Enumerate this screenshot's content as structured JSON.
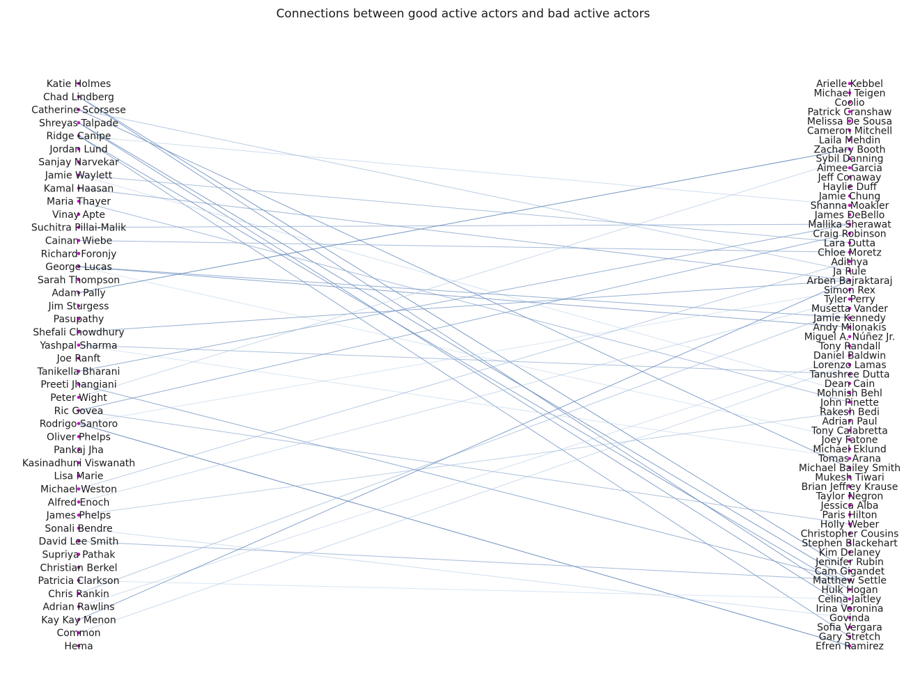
{
  "title": "Connections between good active actors and bad active actors",
  "colors": {
    "node": "#bf1bbf",
    "edge_light": "#c6dbef",
    "edge_dark": "#3b65a6",
    "text": "#1a1a1a",
    "background": "#ffffff"
  },
  "graph": {
    "left_nodes": [
      "Katie Holmes",
      "Chad Lindberg",
      "Catherine Scorsese",
      "Shreyas Talpade",
      "Ridge Canipe",
      "Jordan Lund",
      "Sanjay Narvekar",
      "Jamie Waylett",
      "Kamal Haasan",
      "Maria Thayer",
      "Vinay Apte",
      "Suchitra Pillai-Malik",
      "Cainan Wiebe",
      "Richard Foronjy",
      "George Lucas",
      "Sarah Thompson",
      "Adam Pally",
      "Jim Sturgess",
      "Pasupathy",
      "Shefali Chowdhury",
      "Yashpal Sharma",
      "Joe Ranft",
      "Tanikella Bharani",
      "Preeti Jhangiani",
      "Peter Wight",
      "Ric Govea",
      "Rodrigo Santoro",
      "Oliver Phelps",
      "Pankaj Jha",
      "Kasinadhuni Viswanath",
      "Lisa Marie",
      "Michael Weston",
      "Alfred Enoch",
      "James Phelps",
      "Sonali Bendre",
      "David Lee Smith",
      "Supriya Pathak",
      "Christian Berkel",
      "Patricia Clarkson",
      "Chris Rankin",
      "Adrian Rawlins",
      "Kay Kay Menon",
      "Common",
      "Hema"
    ],
    "right_nodes": [
      "Arielle Kebbel",
      "Michael Teigen",
      "Coolio",
      "Patrick Cranshaw",
      "Melissa De Sousa",
      "Cameron Mitchell",
      "Laila Mehdin",
      "Zachary Booth",
      "Sybil Danning",
      "Aimee Garcia",
      "Jeff Conaway",
      "Haylie Duff",
      "Jamie Chung",
      "Shanna Moakler",
      "James DeBello",
      "Mallika Sherawat",
      "Craig Robinson",
      "Lara Dutta",
      "Chloe Moretz",
      "Adithya",
      "Ja Rule",
      "Arben Bajraktaraj",
      "Simon Rex",
      "Tyler Perry",
      "Musetta Vander",
      "Jamie Kennedy",
      "Andy Milonakis",
      "Miguel A. Núñez Jr.",
      "Tony Randall",
      "Daniel Baldwin",
      "Lorenzo Lamas",
      "Tanushree Dutta",
      "Dean Cain",
      "Mohnish Behl",
      "John Pinette",
      "Rakesh Bedi",
      "Adrian Paul",
      "Tony Calabretta",
      "Joey Fatone",
      "Michael Eklund",
      "Tomas Arana",
      "Michael Bailey Smith",
      "Mukesh Tiwari",
      "Brian Jeffrey Krause",
      "Taylor Negron",
      "Jessica Alba",
      "Paris Hilton",
      "Holly Weber",
      "Christopher Cousins",
      "Stephen Blackehart",
      "Kim Delaney",
      "Jennifer Rubin",
      "Cam Gigandet",
      "Matthew Settle",
      "Hulk Hogan",
      "Celina Jaitley",
      "Irina Voronina",
      "Govinda",
      "Sofia Vergara",
      "Gary Stretch",
      "Efren Ramirez"
    ],
    "edges": [
      {
        "source": "Chad Lindberg",
        "target": "Cam Gigandet",
        "weight": 0.75
      },
      {
        "source": "Chad Lindberg",
        "target": "Celina Jaitley",
        "weight": 0.7
      },
      {
        "source": "Catherine Scorsese",
        "target": "Ja Rule",
        "weight": 0.35
      },
      {
        "source": "Catherine Scorsese",
        "target": "Michael Bailey Smith",
        "weight": 0.7
      },
      {
        "source": "Shreyas Talpade",
        "target": "Matthew Settle",
        "weight": 0.75
      },
      {
        "source": "Shreyas Talpade",
        "target": "Irina Voronina",
        "weight": 0.7
      },
      {
        "source": "Ridge Canipe",
        "target": "Shanna Moakler",
        "weight": 0.15
      },
      {
        "source": "Ridge Canipe",
        "target": "Hulk Hogan",
        "weight": 0.7
      },
      {
        "source": "Ridge Canipe",
        "target": "Gary Stretch",
        "weight": 0.65
      },
      {
        "source": "Jamie Waylett",
        "target": "Lara Dutta",
        "weight": 0.45
      },
      {
        "source": "Jamie Waylett",
        "target": "Mohnish Behl",
        "weight": 0.12
      },
      {
        "source": "Kamal Haasan",
        "target": "Arben Bajraktaraj",
        "weight": 0.55
      },
      {
        "source": "Maria Thayer",
        "target": "John Pinette",
        "weight": 0.5
      },
      {
        "source": "Suchitra Pillai-Malik",
        "target": "Mallika Sherawat",
        "weight": 0.5
      },
      {
        "source": "Cainan Wiebe",
        "target": "Chloe Moretz",
        "weight": 0.5
      },
      {
        "source": "George Lucas",
        "target": "Jamie Kennedy",
        "weight": 0.6
      },
      {
        "source": "George Lucas",
        "target": "Andy Milonakis",
        "weight": 0.65
      },
      {
        "source": "George Lucas",
        "target": "Joey Fatone",
        "weight": 0.08
      },
      {
        "source": "Adam Pally",
        "target": "Zachary Booth",
        "weight": 0.8
      },
      {
        "source": "Shefali Chowdhury",
        "target": "Arben Bajraktaraj",
        "weight": 0.6
      },
      {
        "source": "Yashpal Sharma",
        "target": "Tanushree Dutta",
        "weight": 0.45
      },
      {
        "source": "Yashpal Sharma",
        "target": "Tomas Arana",
        "weight": 0.08
      },
      {
        "source": "Tanikella Bharani",
        "target": "Mallika Sherawat",
        "weight": 0.6
      },
      {
        "source": "Preeti Jhangiani",
        "target": "Matthew Settle",
        "weight": 0.6
      },
      {
        "source": "Peter Wight",
        "target": "Sybil Danning",
        "weight": 0.2
      },
      {
        "source": "Ric Govea",
        "target": "Craig Robinson",
        "weight": 0.6
      },
      {
        "source": "Ric Govea",
        "target": "Holly Weber",
        "weight": 0.45
      },
      {
        "source": "Rodrigo Santoro",
        "target": "Efren Ramirez",
        "weight": 0.85
      },
      {
        "source": "Rodrigo Santoro",
        "target": "Simon Rex",
        "weight": 0.08
      },
      {
        "source": "Michael Weston",
        "target": "Adithya",
        "weight": 0.35
      },
      {
        "source": "Alfred Enoch",
        "target": "Tyler Perry",
        "weight": 0.2
      },
      {
        "source": "James Phelps",
        "target": "Rakesh Bedi",
        "weight": 0.3
      },
      {
        "source": "Sonali Bendre",
        "target": "Govinda",
        "weight": 0.15
      },
      {
        "source": "David Lee Smith",
        "target": "Matthew Settle",
        "weight": 0.5
      },
      {
        "source": "Patricia Clarkson",
        "target": "Celina Jaitley",
        "weight": 0.08
      },
      {
        "source": "Chris Rankin",
        "target": "Musetta Vander",
        "weight": 0.35
      },
      {
        "source": "Adrian Rawlins",
        "target": "Daniel Baldwin",
        "weight": 0.15
      },
      {
        "source": "Kay Kay Menon",
        "target": "Arben Bajraktaraj",
        "weight": 0.7
      },
      {
        "source": "Common",
        "target": "Lorenzo Lamas",
        "weight": 0.2
      }
    ]
  }
}
